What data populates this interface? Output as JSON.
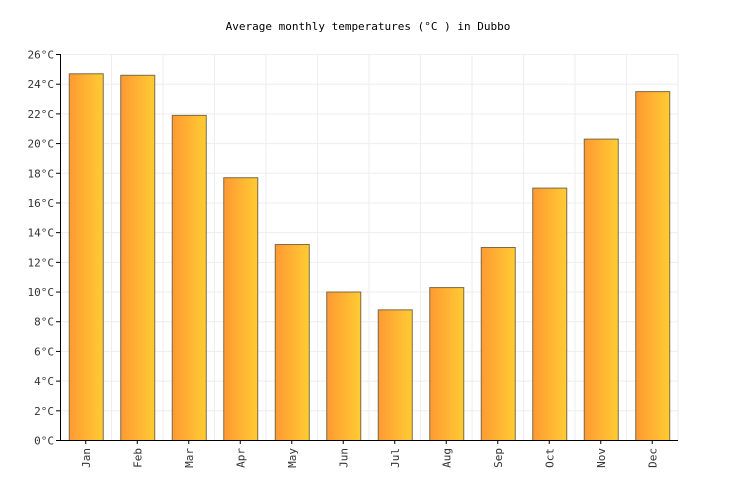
{
  "chart_data": {
    "type": "bar",
    "title": "Average monthly temperatures (°C ) in Dubbo",
    "xlabel": "",
    "ylabel": "",
    "categories": [
      "Jan",
      "Feb",
      "Mar",
      "Apr",
      "May",
      "Jun",
      "Jul",
      "Aug",
      "Sep",
      "Oct",
      "Nov",
      "Dec"
    ],
    "values": [
      24.7,
      24.6,
      21.9,
      17.7,
      13.2,
      10.0,
      8.8,
      10.3,
      13.0,
      17.0,
      20.3,
      23.5
    ],
    "ylim": [
      0,
      26
    ],
    "yticks": [
      0,
      2,
      4,
      6,
      8,
      10,
      12,
      14,
      16,
      18,
      20,
      22,
      24,
      26
    ],
    "ytick_labels": [
      "0°C",
      "2°C",
      "4°C",
      "6°C",
      "8°C",
      "10°C",
      "12°C",
      "14°C",
      "16°C",
      "18°C",
      "20°C",
      "22°C",
      "24°C",
      "26°C"
    ],
    "grid": true,
    "legend": "none",
    "colors": {
      "bar_left": "#FF9933",
      "bar_right": "#FFCC33",
      "bar_stroke": "#7a6a45",
      "grid": "#eeeeee",
      "axis": "#000000"
    }
  }
}
